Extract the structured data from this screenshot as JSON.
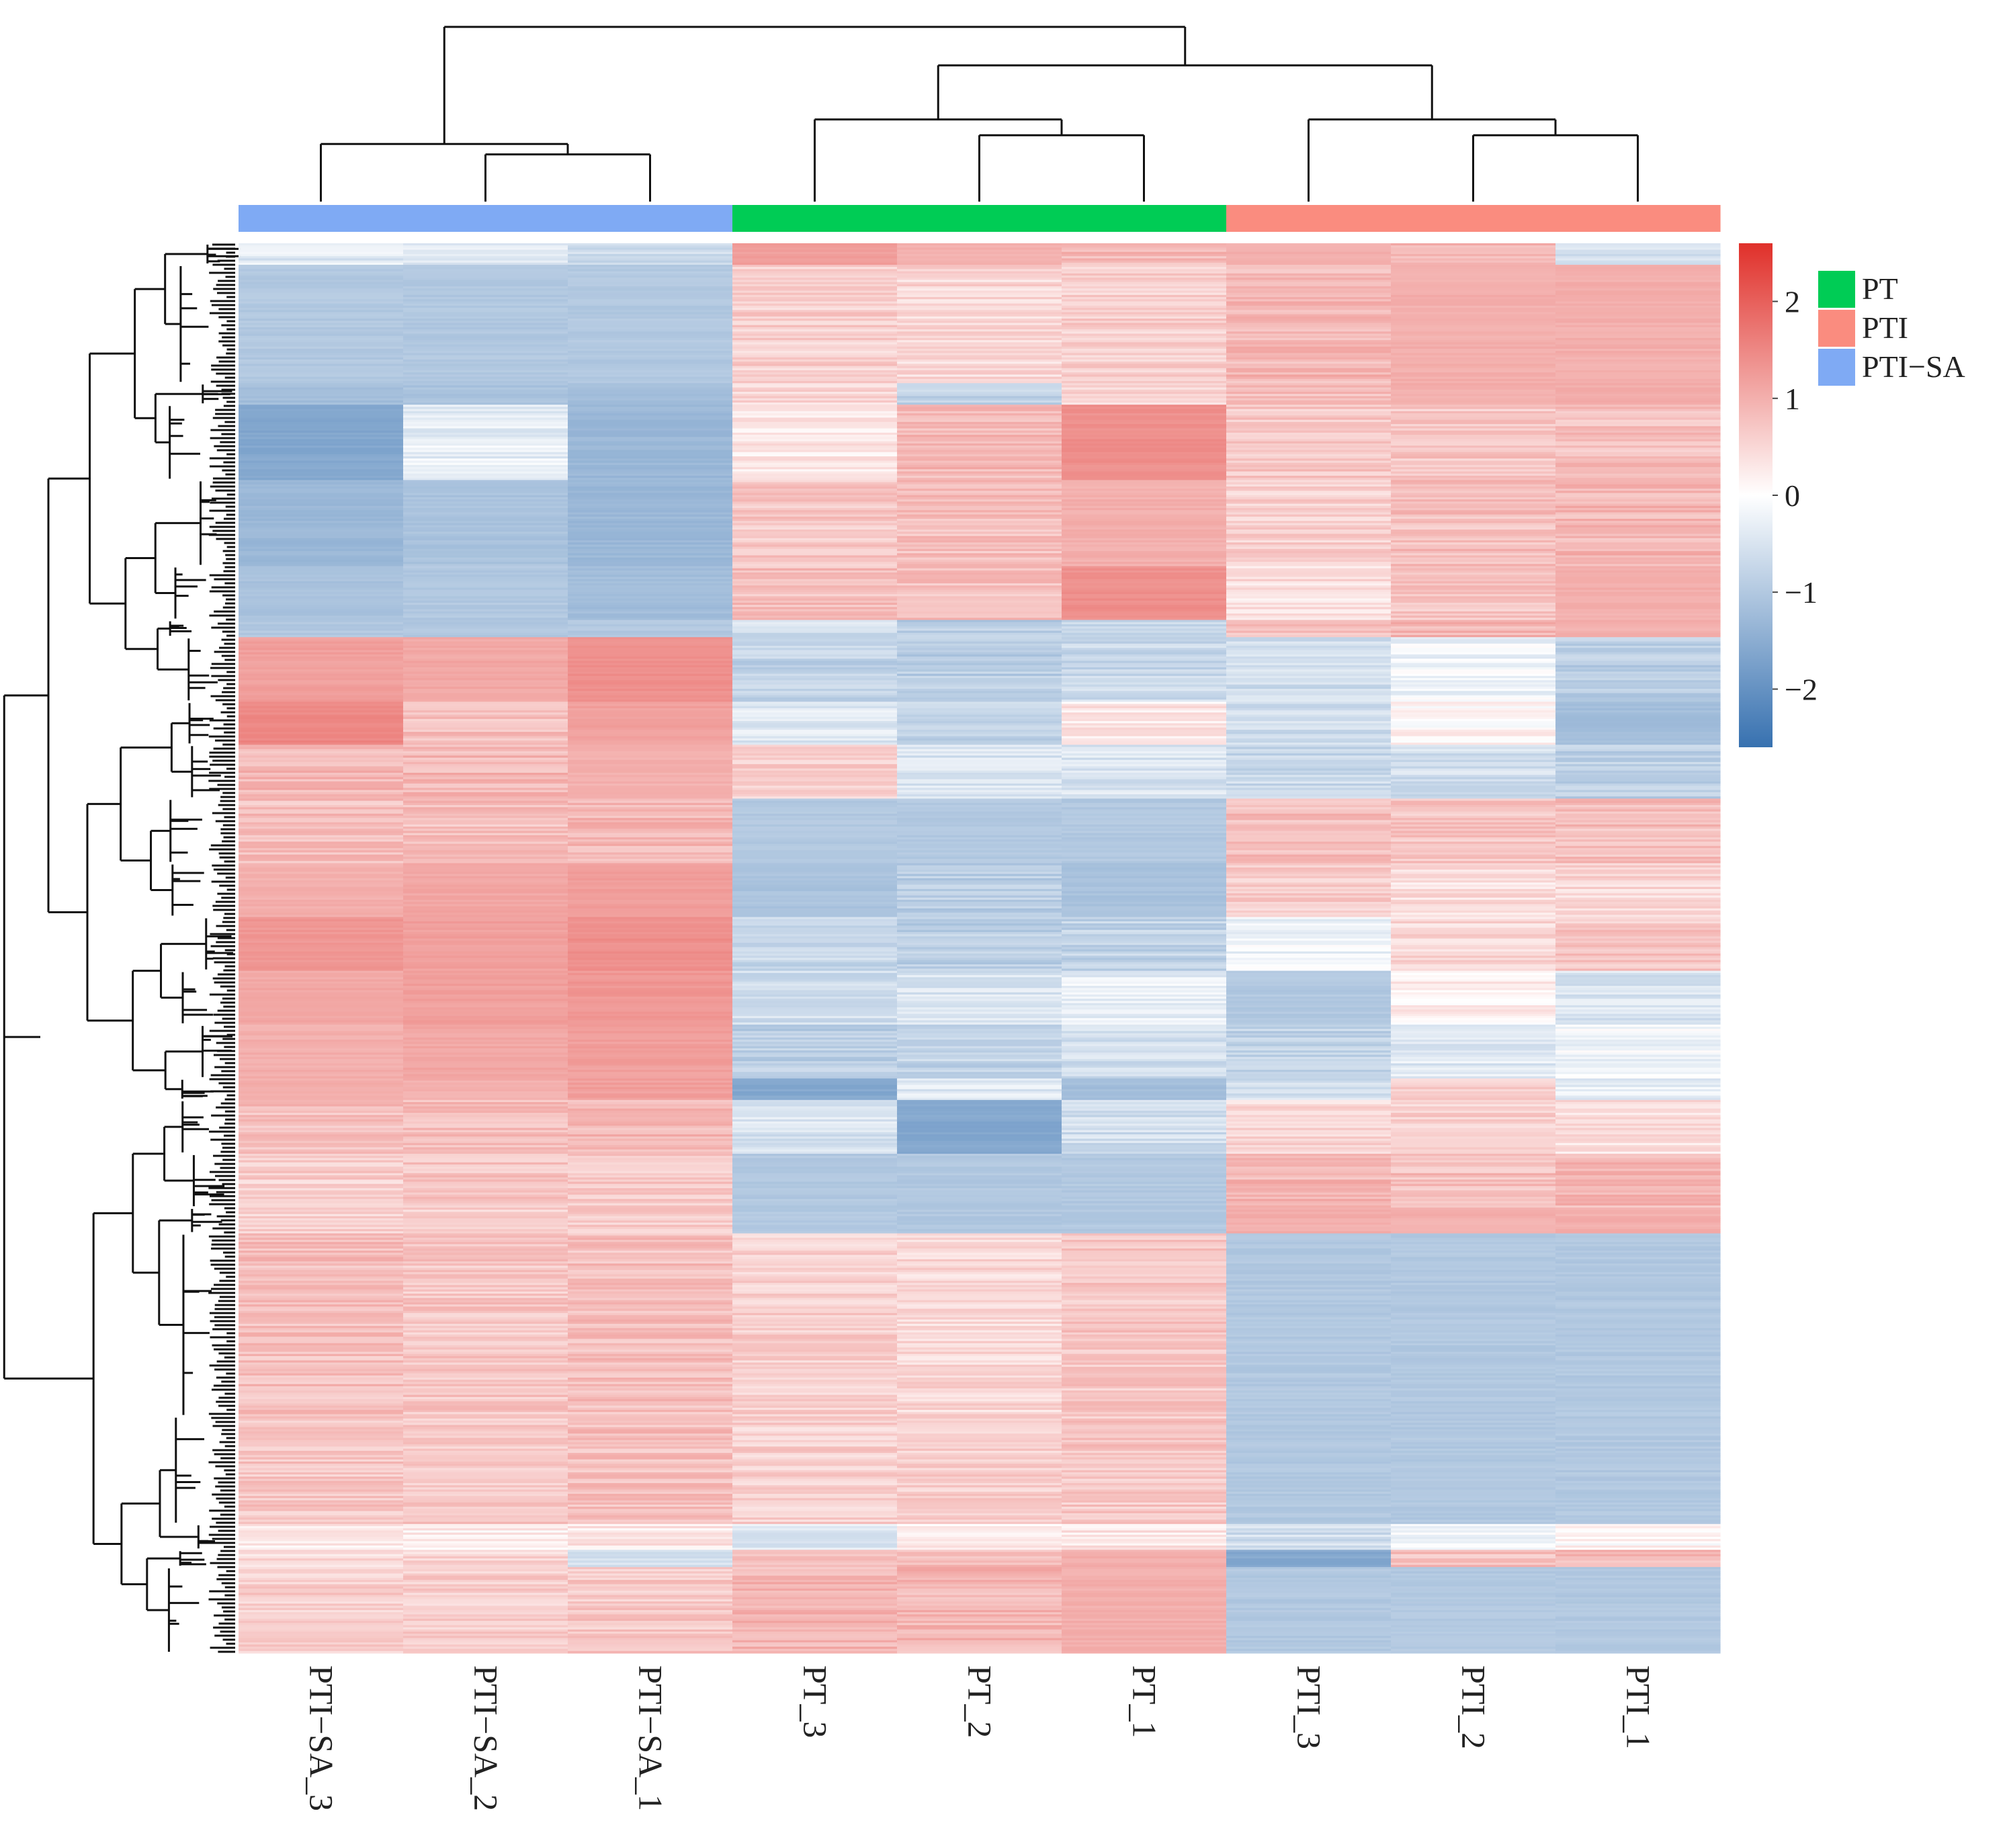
{
  "chart_data": {
    "type": "heatmap",
    "title": "",
    "samples": [
      "PTI-SA_3",
      "PTI-SA_2",
      "PTI-SA_1",
      "PT_3",
      "PT_2",
      "PT_1",
      "PTI_3",
      "PTI_2",
      "PTI_1"
    ],
    "sample_labels": [
      "PTI−SA_3",
      "PTI−SA_2",
      "PTI−SA_1",
      "PT_3",
      "PT_2",
      "PT_1",
      "PTI_3",
      "PTI_2",
      "PTI_1"
    ],
    "sample_groups": [
      "PTI-SA",
      "PTI-SA",
      "PTI-SA",
      "PT",
      "PT",
      "PT",
      "PTI",
      "PTI",
      "PTI"
    ],
    "groups": [
      {
        "name": "PT",
        "label": "PT",
        "color": "#00CC55"
      },
      {
        "name": "PTI",
        "label": "PTI",
        "color": "#FA8C7F"
      },
      {
        "name": "PTI-SA",
        "label": "PTI−SA",
        "color": "#7FAAF4"
      }
    ],
    "color_scale": {
      "min": -2.6,
      "max": 2.6,
      "low_color": "#3771B0",
      "mid_color": "#FFFFFF",
      "high_color": "#E0302A",
      "ticks": [
        2,
        1,
        0,
        -1,
        -2
      ],
      "tick_labels": [
        "2",
        "1",
        "0",
        "−1",
        "−2"
      ]
    },
    "row_dendrogram": true,
    "column_dendrogram": {
      "merges": [
        {
          "left": "PTI-SA_2",
          "right": "PTI-SA_1",
          "height": 0.27
        },
        {
          "left": "PTI-SA_3",
          "right": [
            "PTI-SA_2",
            "PTI-SA_1"
          ],
          "height": 0.33
        },
        {
          "left": "PT_2",
          "right": "PT_1",
          "height": 0.38
        },
        {
          "left": "PT_3",
          "right": [
            "PT_2",
            "PT_1"
          ],
          "height": 0.47
        },
        {
          "left": "PTI_2",
          "right": "PTI_1",
          "height": 0.38
        },
        {
          "left": "PTI_3",
          "right": [
            "PTI_2",
            "PTI_1"
          ],
          "height": 0.47
        },
        {
          "left": "PT cluster",
          "right": "PTI cluster",
          "height": 0.78
        },
        {
          "left": "PTI-SA cluster",
          "right": "PT+PTI cluster",
          "height": 1.0
        }
      ]
    },
    "row_blocks": [
      {
        "rows": 10,
        "values": [
          -0.4,
          -0.4,
          -0.6,
          1.2,
          1.0,
          0.9,
          1.0,
          0.9,
          -0.6
        ]
      },
      {
        "rows": 55,
        "values": [
          -1.0,
          -1.0,
          -1.0,
          0.6,
          0.5,
          0.6,
          0.9,
          1.0,
          1.0
        ]
      },
      {
        "rows": 10,
        "values": [
          -1.2,
          -1.1,
          -1.2,
          0.5,
          -0.8,
          0.5,
          0.8,
          1.0,
          1.0
        ]
      },
      {
        "rows": 35,
        "values": [
          -1.6,
          -0.3,
          -1.3,
          0.3,
          0.9,
          1.4,
          0.7,
          0.7,
          0.8
        ]
      },
      {
        "rows": 40,
        "values": [
          -1.3,
          -1.1,
          -1.3,
          0.7,
          0.8,
          1.0,
          0.6,
          0.8,
          0.9
        ]
      },
      {
        "rows": 25,
        "values": [
          -1.1,
          -1.0,
          -1.2,
          0.8,
          0.8,
          1.4,
          0.4,
          0.7,
          1.0
        ]
      },
      {
        "rows": 8,
        "values": [
          -1.0,
          -1.0,
          -1.0,
          -0.6,
          -0.9,
          -0.7,
          0.7,
          0.9,
          1.0
        ]
      },
      {
        "rows": 30,
        "values": [
          1.2,
          1.1,
          1.4,
          -0.8,
          -0.9,
          -0.7,
          -0.6,
          -0.2,
          -0.9
        ]
      },
      {
        "rows": 20,
        "values": [
          1.5,
          0.8,
          1.2,
          -0.4,
          -0.8,
          0.3,
          -0.6,
          0.1,
          -1.2
        ]
      },
      {
        "rows": 25,
        "values": [
          0.9,
          0.9,
          1.0,
          0.6,
          -0.5,
          -0.5,
          -0.7,
          -0.6,
          -0.9
        ]
      },
      {
        "rows": 30,
        "values": [
          0.8,
          0.8,
          0.9,
          -1.0,
          -1.0,
          -1.0,
          0.8,
          0.7,
          0.8
        ]
      },
      {
        "rows": 25,
        "values": [
          1.0,
          1.1,
          1.2,
          -1.1,
          -0.9,
          -1.1,
          0.6,
          0.4,
          0.5
        ]
      },
      {
        "rows": 25,
        "values": [
          1.3,
          1.2,
          1.4,
          -0.7,
          -0.9,
          -0.8,
          -0.2,
          0.5,
          0.7
        ]
      },
      {
        "rows": 25,
        "values": [
          1.1,
          1.2,
          1.3,
          -0.6,
          -0.5,
          -0.3,
          -1.0,
          0.2,
          -0.5
        ]
      },
      {
        "rows": 25,
        "values": [
          1.0,
          1.1,
          1.2,
          -0.9,
          -0.8,
          -0.6,
          -0.8,
          -0.4,
          -0.2
        ]
      },
      {
        "rows": 10,
        "values": [
          1.0,
          1.0,
          1.2,
          -1.6,
          -0.4,
          -1.2,
          -0.6,
          0.6,
          -0.3
        ]
      },
      {
        "rows": 25,
        "values": [
          0.8,
          0.8,
          0.9,
          -0.5,
          -1.6,
          -0.6,
          0.5,
          0.6,
          0.4
        ]
      },
      {
        "rows": 25,
        "values": [
          0.6,
          0.7,
          0.7,
          -1.0,
          -1.0,
          -1.0,
          0.9,
          0.8,
          0.9
        ]
      },
      {
        "rows": 12,
        "values": [
          0.6,
          0.6,
          0.6,
          -1.0,
          -1.0,
          -1.0,
          1.0,
          1.0,
          1.0
        ]
      },
      {
        "rows": 85,
        "values": [
          0.8,
          0.7,
          0.8,
          0.6,
          0.5,
          0.7,
          -1.0,
          -1.0,
          -1.0
        ]
      },
      {
        "rows": 50,
        "values": [
          0.7,
          0.7,
          0.8,
          0.6,
          0.6,
          0.7,
          -1.0,
          -1.0,
          -1.0
        ]
      },
      {
        "rows": 12,
        "values": [
          0.2,
          0.2,
          0.3,
          -0.4,
          0.2,
          0.3,
          -0.6,
          -0.2,
          0.1
        ]
      },
      {
        "rows": 8,
        "values": [
          0.5,
          0.5,
          -0.6,
          0.9,
          0.9,
          1.0,
          -1.6,
          0.8,
          0.9
        ]
      },
      {
        "rows": 40,
        "values": [
          0.6,
          0.6,
          0.7,
          0.9,
          0.9,
          1.0,
          -1.0,
          -1.0,
          -1.0
        ]
      }
    ]
  }
}
